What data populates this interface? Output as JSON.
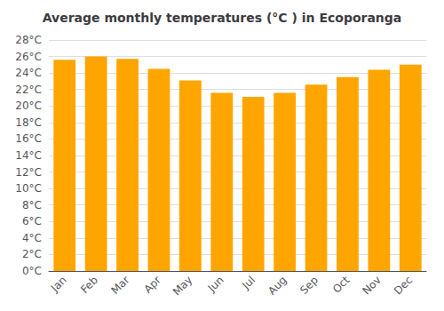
{
  "chart_data": {
    "type": "bar",
    "title": "Average monthly temperatures (°C ) in Ecoporanga",
    "categories": [
      "Jan",
      "Feb",
      "Mar",
      "Apr",
      "May",
      "Jun",
      "Jul",
      "Aug",
      "Sep",
      "Oct",
      "Nov",
      "Dec"
    ],
    "values": [
      25.6,
      26.0,
      25.7,
      24.5,
      23.1,
      21.6,
      21.1,
      21.6,
      22.6,
      23.5,
      24.4,
      25.0
    ],
    "color": "#FFA500",
    "ylim": [
      0,
      28
    ],
    "yticks": [
      {
        "value": 0,
        "label": "0°C"
      },
      {
        "value": 2,
        "label": "2°C"
      },
      {
        "value": 4,
        "label": "4°C"
      },
      {
        "value": 6,
        "label": "6°C"
      },
      {
        "value": 8,
        "label": "8°C"
      },
      {
        "value": 10,
        "label": "10°C"
      },
      {
        "value": 12,
        "label": "12°C"
      },
      {
        "value": 14,
        "label": "14°C"
      },
      {
        "value": 16,
        "label": "16°C"
      },
      {
        "value": 18,
        "label": "18°C"
      },
      {
        "value": 20,
        "label": "20°C"
      },
      {
        "value": 22,
        "label": "22°C"
      },
      {
        "value": 24,
        "label": "24°C"
      },
      {
        "value": 26,
        "label": "26°C"
      },
      {
        "value": 28,
        "label": "28°C"
      }
    ],
    "grid": true
  }
}
